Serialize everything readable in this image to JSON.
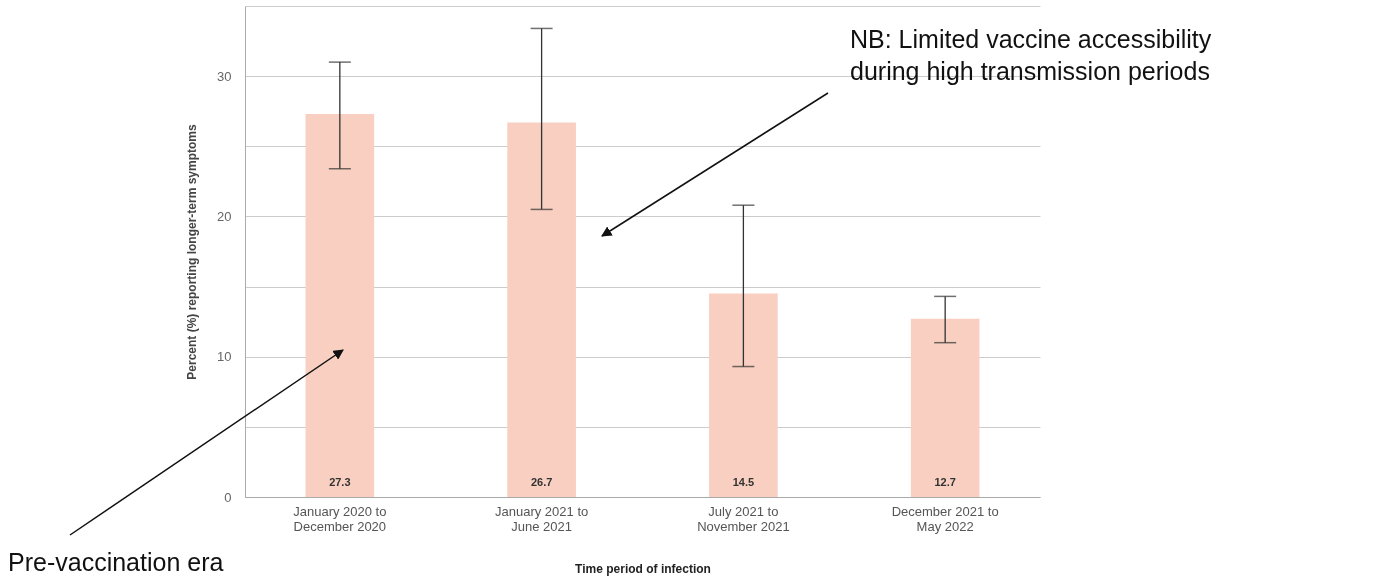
{
  "chart_data": {
    "type": "bar",
    "categories": [
      "January 2020 to December 2020",
      "January 2021 to June 2021",
      "July 2021 to November 2021",
      "December 2021 to May 2022"
    ],
    "values": [
      27.3,
      26.7,
      14.5,
      12.7
    ],
    "errors": [
      [
        23.4,
        31.0
      ],
      [
        20.5,
        33.4
      ],
      [
        9.3,
        20.8
      ],
      [
        11.0,
        14.3
      ]
    ],
    "color": "#f8cfc0",
    "data_labels": true,
    "xlabel": "Time period of infection",
    "ylabel": "Percent (%) reporting longer-term symptoms",
    "ylim": [
      0,
      35
    ],
    "yticks": [
      0,
      {
        "value": 5,
        "label": null
      },
      10,
      {
        "value": 15,
        "label": null
      },
      20,
      {
        "value": 25,
        "label": null
      },
      30,
      {
        "value": 35,
        "label": null
      }
    ],
    "grid": "y",
    "annotations": [
      "NB: Limited vaccine accessibility during high transmission periods",
      "Pre-vaccination era"
    ]
  }
}
